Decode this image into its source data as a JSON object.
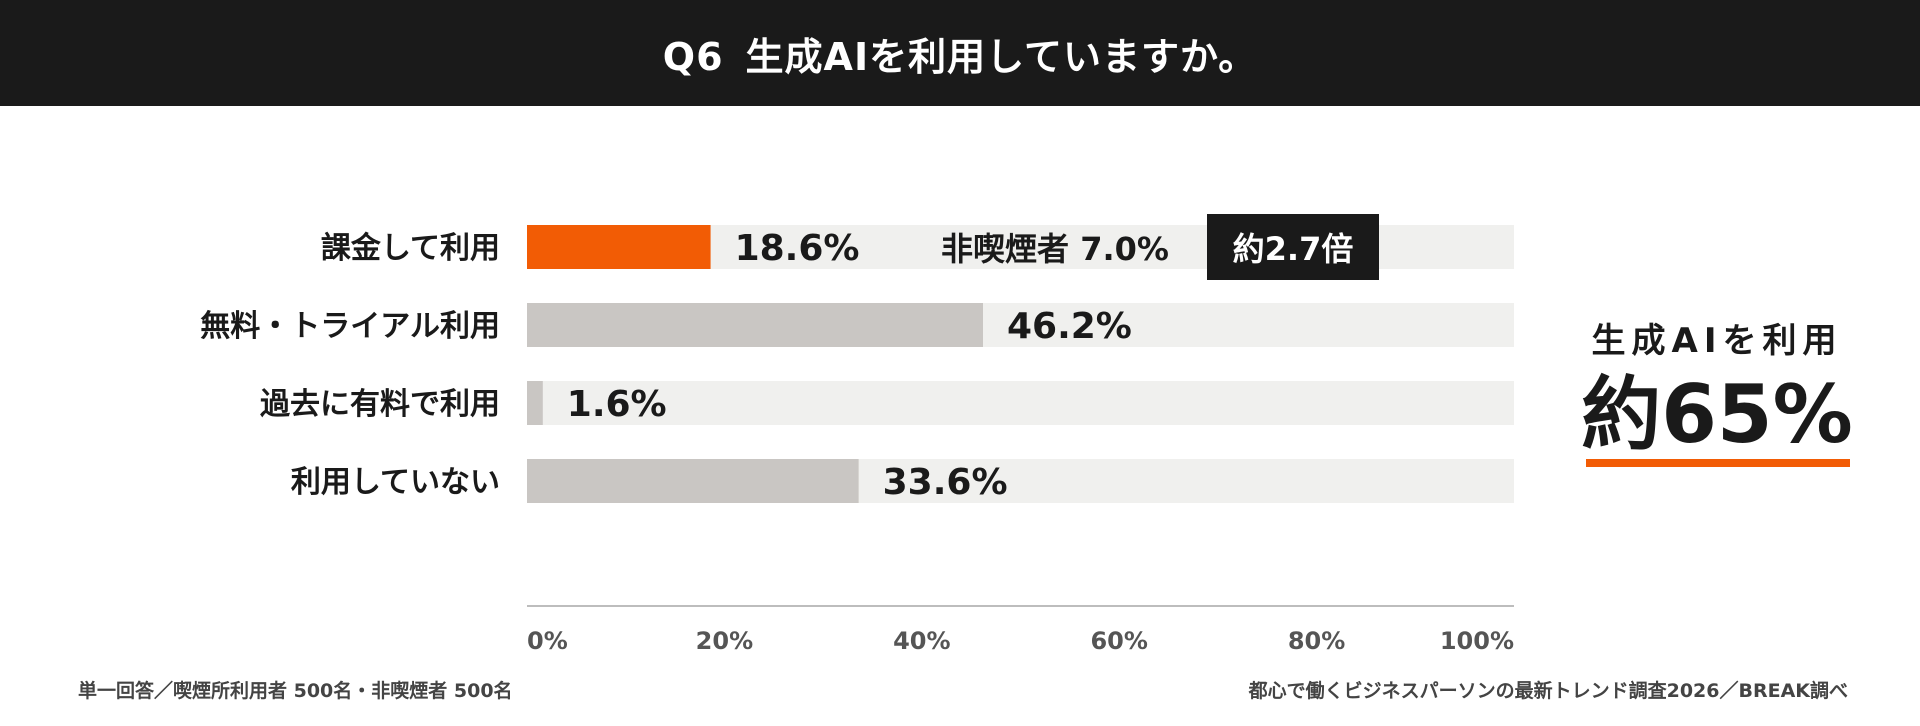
{
  "header": {
    "question_no": "Q6",
    "title": "生成AIを利用していますか。"
  },
  "colors": {
    "header_bg": "#1a1a1a",
    "highlight_bar": "#f25c05",
    "bar": "#c9c6c3",
    "track": "#f0f0ee",
    "badge_bg": "#1a1a1a",
    "callout_underline": "#f25c05"
  },
  "chart_data": {
    "type": "bar",
    "orientation": "horizontal",
    "categories": [
      "課金して利用",
      "無料・トライアル利用",
      "過去に有料で利用",
      "利用していない"
    ],
    "values": [
      18.6,
      46.2,
      1.6,
      33.6
    ],
    "value_labels": [
      "18.6%",
      "46.2%",
      "1.6%",
      "33.6%"
    ],
    "highlight_index": 0,
    "xlim": [
      0,
      100
    ],
    "x_ticks": [
      "0%",
      "20%",
      "40%",
      "60%",
      "80%",
      "100%"
    ],
    "comparison": {
      "label": "非喫煙者 7.0%",
      "badge": "約2.7倍"
    },
    "grid": false,
    "legend": "none"
  },
  "callout": {
    "label": "生成AIを利用",
    "value": "約65%"
  },
  "footer": {
    "left": "単一回答／喫煙所利用者 500名・非喫煙者 500名",
    "right": "都心で働くビジネスパーソンの最新トレンド調査2026／BREAK調べ"
  }
}
